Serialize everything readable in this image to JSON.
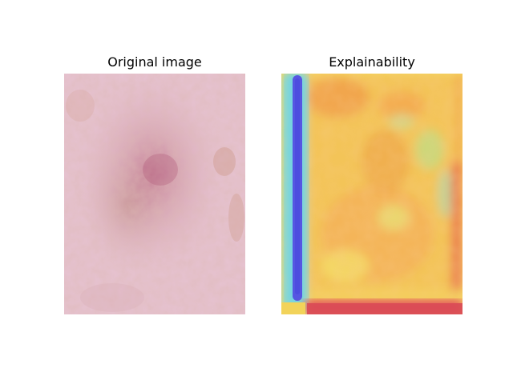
{
  "panels": {
    "left": {
      "title": "Original image",
      "icon": "dermoscopy-lesion-photo"
    },
    "right": {
      "title": "Explainability",
      "icon": "saliency-heatmap-overlay"
    }
  },
  "colors": {
    "skin_base": "#e8c2cf",
    "skin_lesion": "#c07b8f",
    "heat_red": "#e8505a",
    "heat_orange": "#f5a64a",
    "heat_yellow": "#f2e25a",
    "heat_cyan": "#6fd6e0",
    "heat_blue": "#5a5ae6"
  }
}
